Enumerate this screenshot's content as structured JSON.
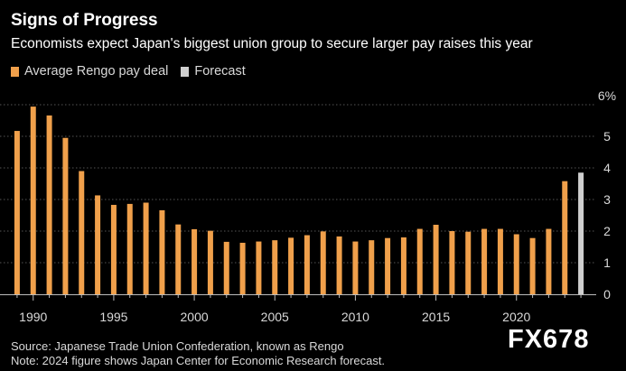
{
  "header": {
    "title": "Signs of Progress",
    "subtitle": "Economists expect Japan's biggest union group to secure larger pay raises this year"
  },
  "legend": {
    "actual_label": "Average Rengo pay deal",
    "forecast_label": "Forecast"
  },
  "colors": {
    "actual": "#f0a04b",
    "forecast": "#cfcfcf",
    "grid": "#555555",
    "axis": "#bbbbbb",
    "text": "#d9d9d9"
  },
  "footer": {
    "source": "Source: Japanese Trade Union Confederation, known as Rengo",
    "note": "Note: 2024 figure shows Japan Center for Economic Research forecast."
  },
  "watermark": "FX678",
  "chart_data": {
    "type": "bar",
    "title": "Signs of Progress",
    "subtitle": "Economists expect Japan's biggest union group to secure larger pay raises this year",
    "xlabel": "",
    "ylabel": "",
    "y_unit": "%",
    "ylim": [
      0,
      6
    ],
    "y_ticks": [
      0,
      1,
      2,
      3,
      4,
      5,
      6
    ],
    "y_tick_labels": [
      "0",
      "1",
      "2",
      "3",
      "4",
      "5",
      "6%"
    ],
    "x_ticks": [
      1990,
      1995,
      2000,
      2005,
      2010,
      2015,
      2020
    ],
    "grid": true,
    "legend_position": "top-left",
    "series": [
      {
        "name": "Average Rengo pay deal",
        "x": [
          1989,
          1990,
          1991,
          1992,
          1993,
          1994,
          1995,
          1996,
          1997,
          1998,
          1999,
          2000,
          2001,
          2002,
          2003,
          2004,
          2005,
          2006,
          2007,
          2008,
          2009,
          2010,
          2011,
          2012,
          2013,
          2014,
          2015,
          2016,
          2017,
          2018,
          2019,
          2020,
          2021,
          2022,
          2023
        ],
        "values": [
          5.17,
          5.94,
          5.66,
          4.95,
          3.9,
          3.13,
          2.83,
          2.86,
          2.9,
          2.66,
          2.21,
          2.06,
          2.01,
          1.66,
          1.63,
          1.67,
          1.71,
          1.79,
          1.87,
          1.99,
          1.83,
          1.67,
          1.71,
          1.78,
          1.8,
          2.07,
          2.2,
          2.0,
          1.98,
          2.07,
          2.07,
          1.9,
          1.78,
          2.07,
          3.58
        ]
      },
      {
        "name": "Forecast",
        "x": [
          2024
        ],
        "values": [
          3.85
        ]
      }
    ]
  }
}
